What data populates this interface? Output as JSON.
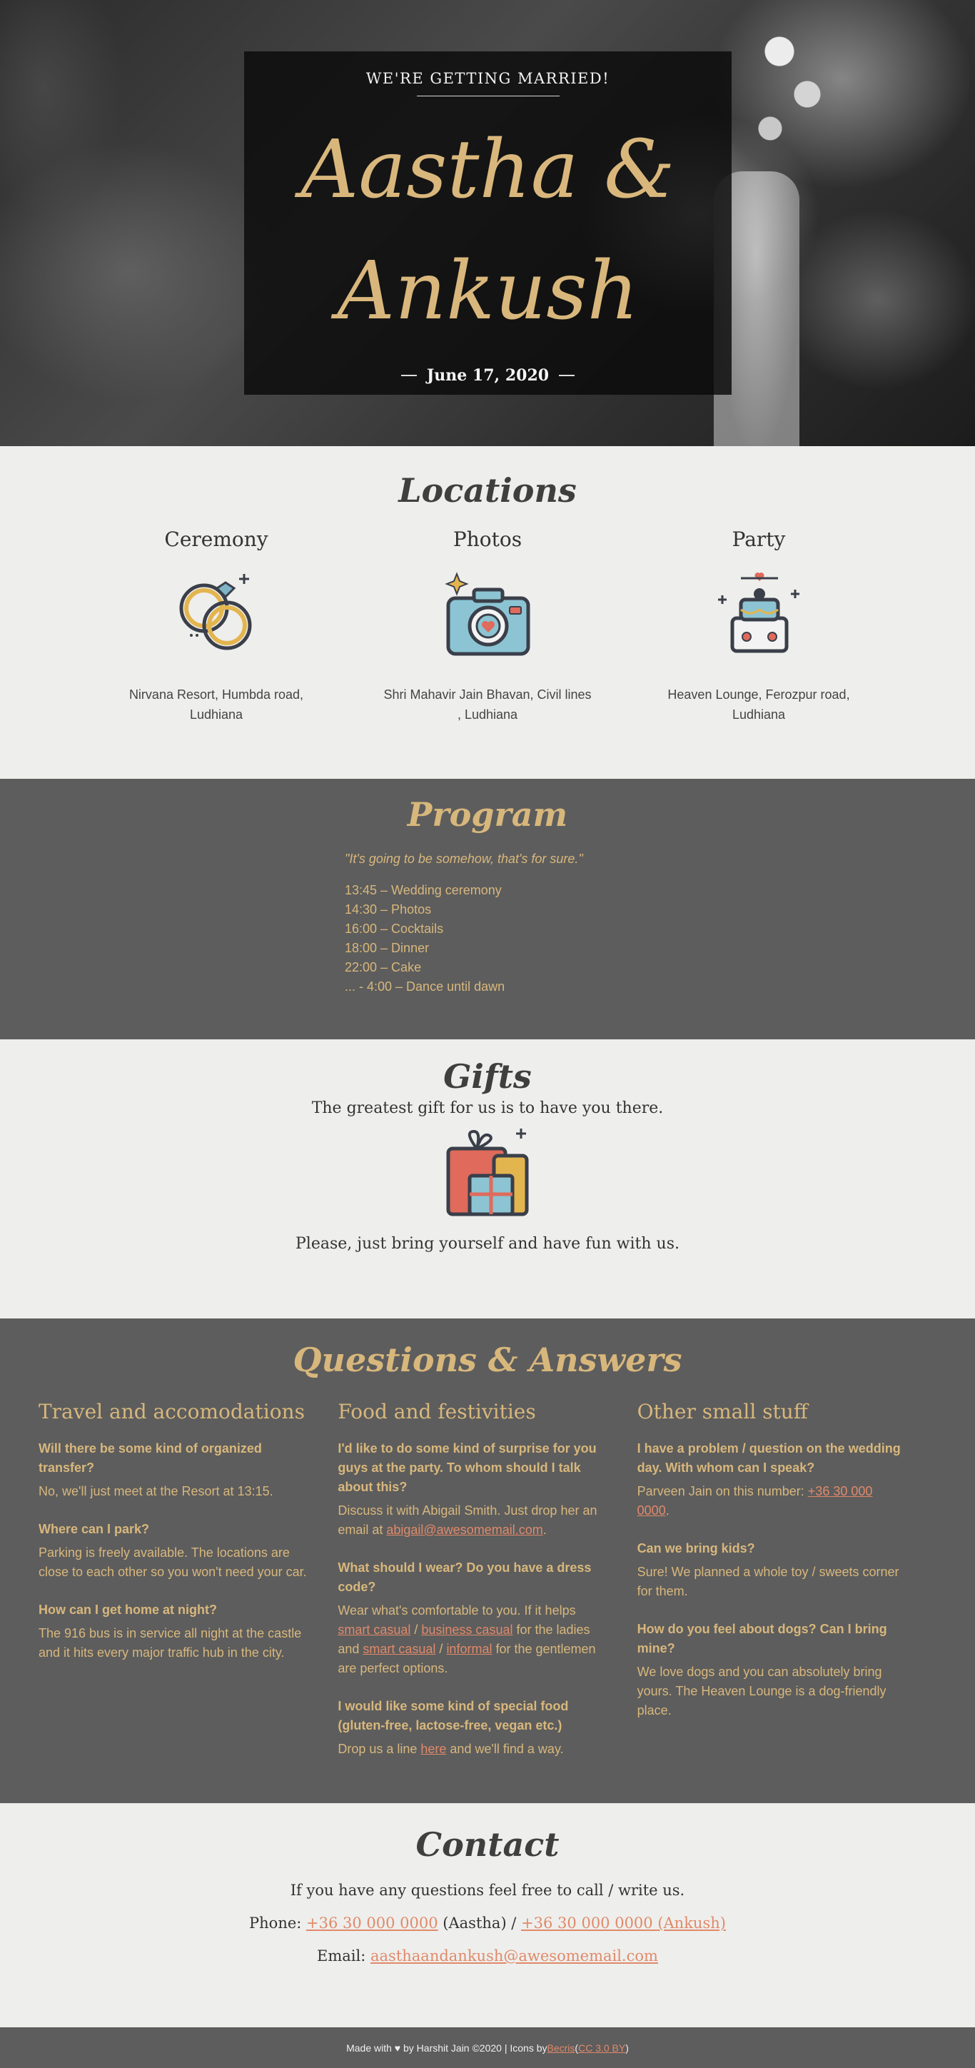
{
  "hero": {
    "eyebrow": "WE'RE GETTING MARRIED!",
    "names": "Aastha & Ankush",
    "date": "June 17, 2020"
  },
  "locations": {
    "title": "Locations",
    "items": [
      {
        "heading": "Ceremony",
        "icon": "rings-icon",
        "address": "Nirvana Resort, Humbda road, Ludhiana"
      },
      {
        "heading": "Photos",
        "icon": "camera-icon",
        "address": "Shri Mahavir Jain Bhavan, Civil lines , Ludhiana"
      },
      {
        "heading": "Party",
        "icon": "wedding-cake-icon",
        "address": "Heaven Lounge, Ferozpur road, Ludhiana"
      }
    ]
  },
  "program": {
    "title": "Program",
    "quote": "\"It's going to be somehow, that's for sure.\"",
    "schedule": [
      "13:45 – Wedding ceremony",
      "14:30 – Photos",
      "16:00 – Cocktails",
      "18:00 – Dinner",
      "22:00 – Cake",
      "... - 4:00 – Dance until dawn"
    ]
  },
  "gifts": {
    "title": "Gifts",
    "line1": "The greatest gift for us is to have you there.",
    "line2": "Please, just bring yourself and have fun with us.",
    "icon": "gift-icon"
  },
  "qa": {
    "title": "Questions & Answers",
    "columns": [
      {
        "heading": "Travel and accomodations",
        "items": [
          {
            "q": "Will there be some kind of organized transfer?",
            "a": "No, we'll just meet at the Resort at 13:15."
          },
          {
            "q": "Where can I park?",
            "a": "Parking is freely available. The locations are close to each other so you won't need your car."
          },
          {
            "q": "How can I get home at night?",
            "a": "The 916 bus is in service all night at the castle and it hits every major traffic hub in the city."
          }
        ]
      },
      {
        "heading": "Food and festivities",
        "items": [
          {
            "q": "I'd like to do some kind of surprise for you guys at the party. To whom should I talk about this?",
            "a_pre": "Discuss it with Abigail Smith. Just drop her an email at ",
            "a_link": "abigail@awesomemail.com",
            "a_post": "."
          },
          {
            "q": "What should I wear? Do you have a dress code?",
            "a_pre": "Wear what's comfortable to you. If it helps ",
            "link1": "smart casual",
            "sep1": " / ",
            "link2": "business casual",
            "mid": " for the ladies and ",
            "link3": "smart casual",
            "sep2": " / ",
            "link4": "informal",
            "a_post": " for the gentlemen are perfect options."
          },
          {
            "q": "I would like some kind of special food (gluten-free, lactose-free, vegan etc.)",
            "a_pre": "Drop us a line ",
            "a_link": "here",
            "a_post": " and we'll find a way."
          }
        ]
      },
      {
        "heading": "Other small stuff",
        "items": [
          {
            "q": "I have a problem / question on the wedding day. With whom can I speak?",
            "a_pre": "Parveen Jain on this number: ",
            "a_link": "+36 30 000 0000",
            "a_post": "."
          },
          {
            "q": "Can we bring kids?",
            "a": "Sure! We planned a whole toy / sweets corner for them."
          },
          {
            "q": "How do you feel about dogs? Can I bring mine?",
            "a": "We love dogs and you can absolutely bring yours. The Heaven Lounge is a dog-friendly place."
          }
        ]
      }
    ]
  },
  "contact": {
    "title": "Contact",
    "intro": "If you have any questions feel free to call / write us.",
    "phone_label": "Phone: ",
    "phone1": "+36 30 000 0000",
    "phone1_who": " (Aastha) / ",
    "phone2": "+36 30 000 0000 (Ankush)",
    "email_label": "Email: ",
    "email": "aasthaandankush@awesomemail.com"
  },
  "footer": {
    "text_pre": "Made with ♥ by Harshit Jain ©2020 | Icons by ",
    "link1": "Becris",
    "paren_open": " (",
    "link2": "CC 3.0 BY",
    "paren_close": ")"
  },
  "colors": {
    "gold": "#d8b77c",
    "link": "#e08a6a",
    "dark_bg": "#5d5d5d",
    "light_bg": "#eeeeec"
  }
}
